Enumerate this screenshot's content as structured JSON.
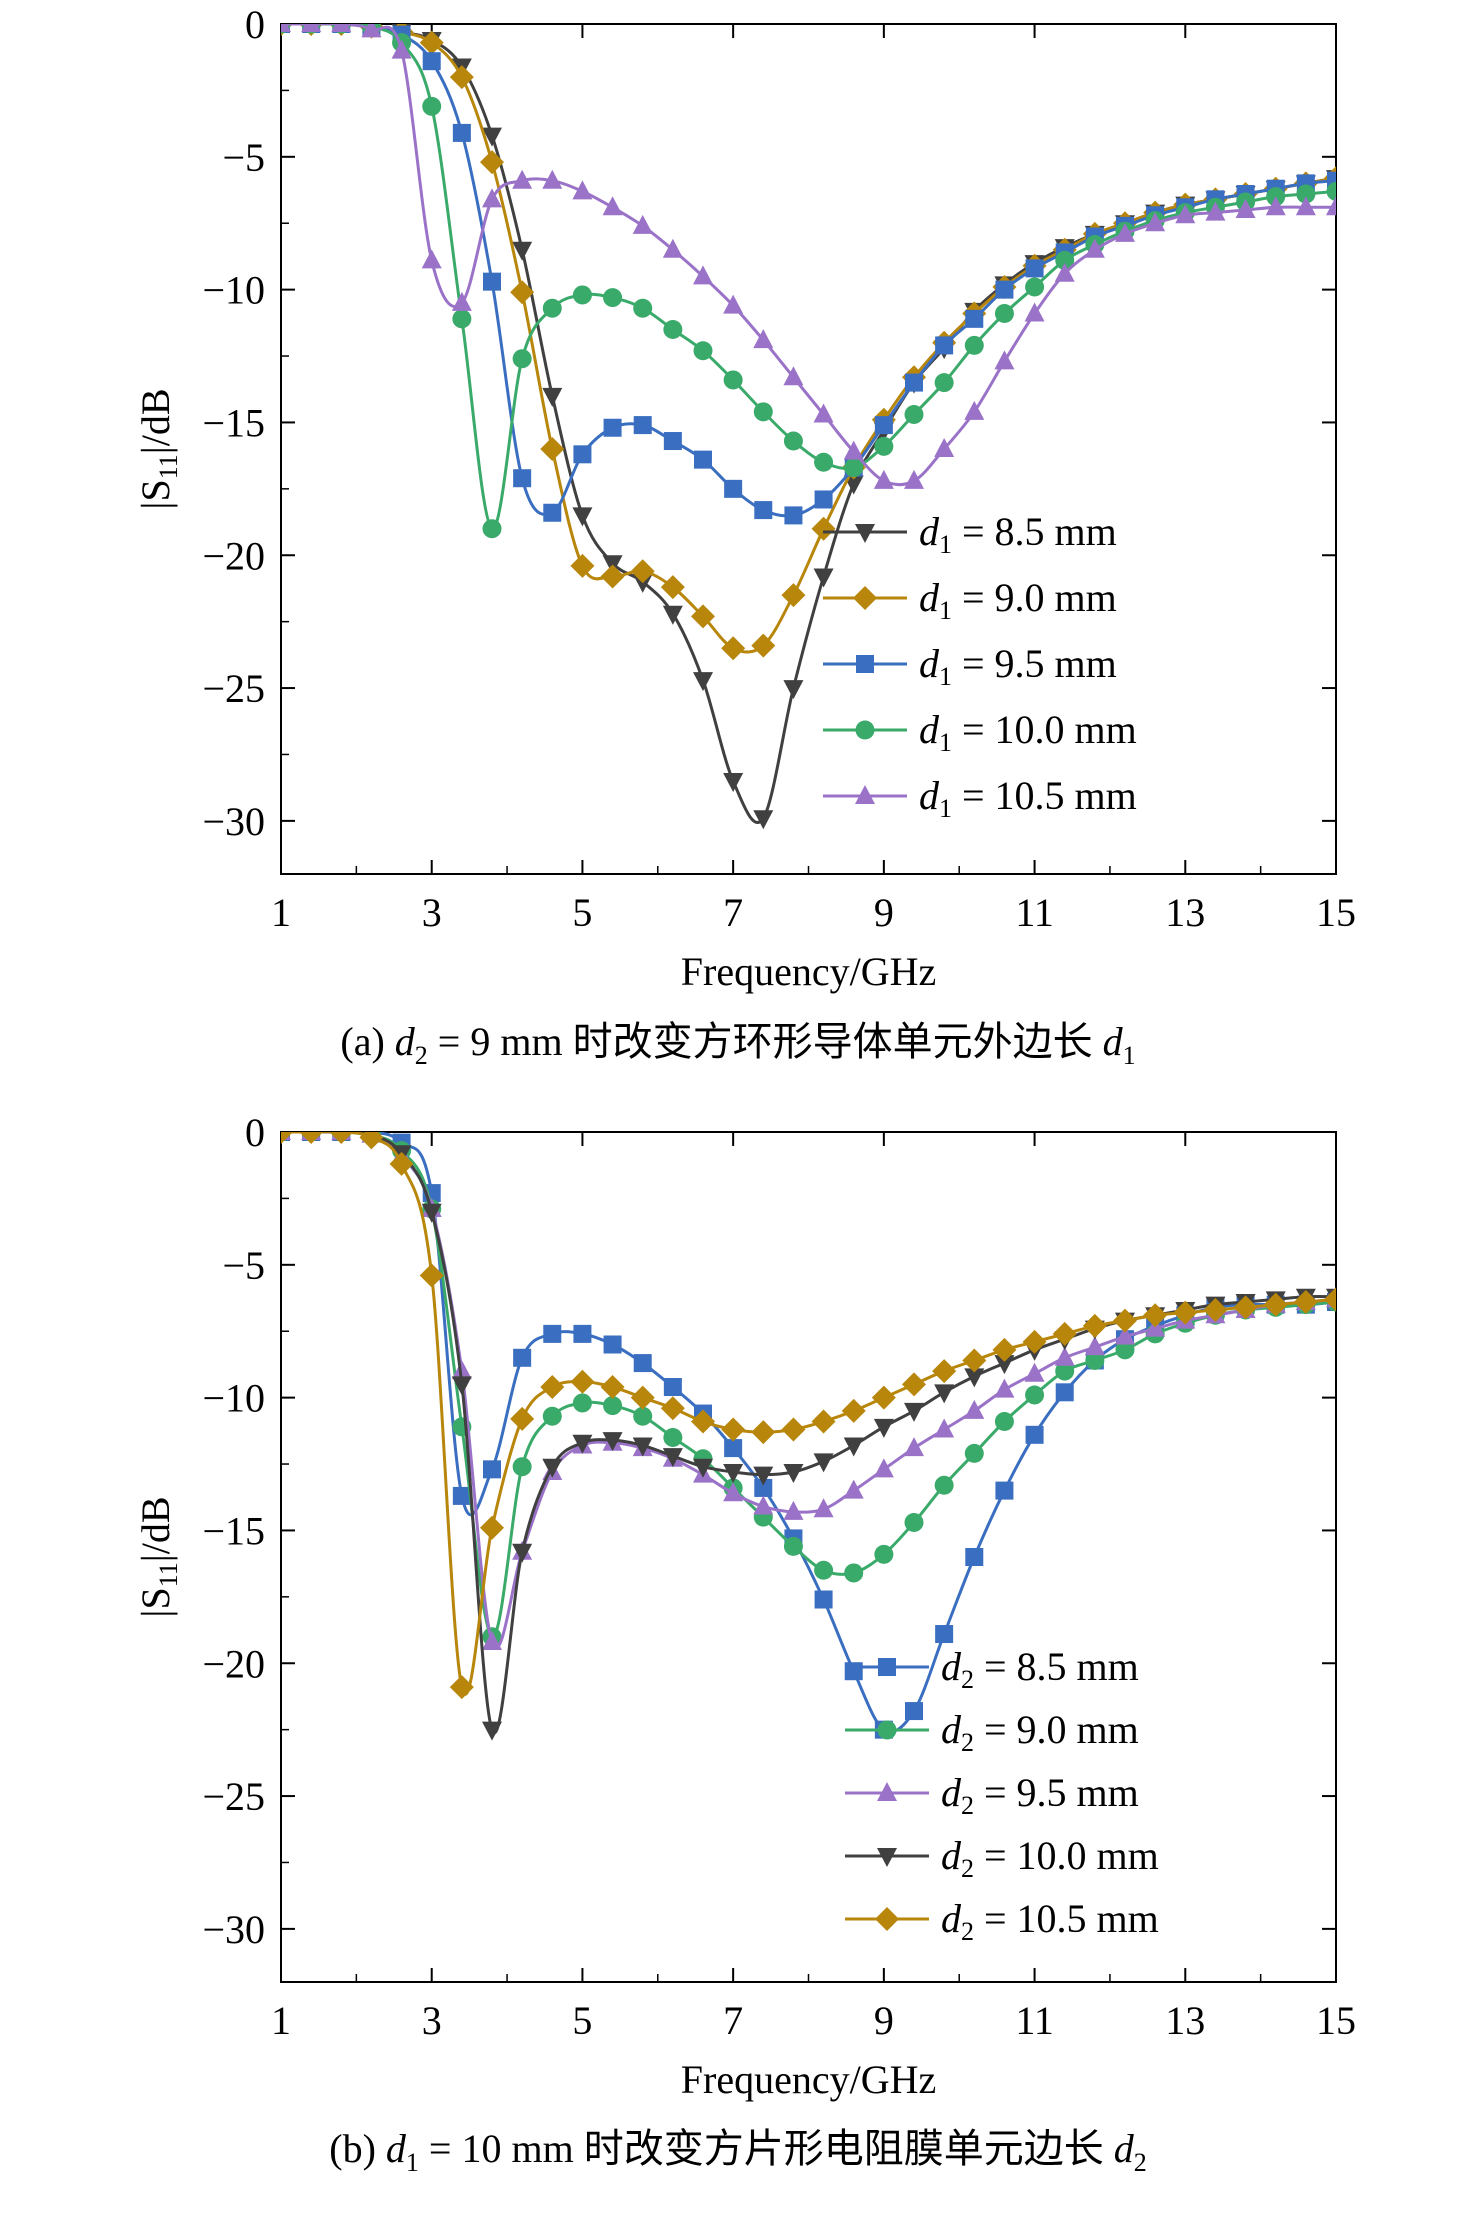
{
  "chart_data": [
    {
      "type": "line",
      "panel": "a",
      "xlabel": "Frequency/GHz",
      "ylabel": "|S11|/dB",
      "xlim": [
        1,
        15
      ],
      "ylim": [
        -32,
        0
      ],
      "xticks": [
        1,
        3,
        5,
        7,
        9,
        11,
        13,
        15
      ],
      "yticks": [
        0,
        -5,
        -10,
        -15,
        -20,
        -25,
        -30
      ],
      "grid": false,
      "legend_position": "bottom-right",
      "caption": {
        "prefix": "(a) ",
        "var1": "d",
        "sub1": "2",
        "mid": " = 9 mm 时改变方环形导体单元外边长 ",
        "var2": "d",
        "sub2": "1"
      },
      "series": [
        {
          "name": "d1 = 8.5 mm",
          "legend_var": "d",
          "legend_sub": "1",
          "legend_value": " = 8.5 mm",
          "color": "#404040",
          "marker": "triangle-down",
          "x": [
            1,
            1.4,
            1.8,
            2.2,
            2.6,
            3.0,
            3.4,
            3.8,
            4.2,
            4.6,
            5.0,
            5.4,
            5.8,
            6.2,
            6.6,
            7.0,
            7.4,
            7.8,
            8.2,
            8.6,
            9.0,
            9.4,
            9.8,
            10.2,
            10.6,
            11.0,
            11.4,
            11.8,
            12.2,
            12.6,
            13.0,
            13.4,
            13.8,
            14.2,
            14.6,
            15.0
          ],
          "y": [
            0,
            0,
            0,
            -0.1,
            -0.3,
            -0.6,
            -1.6,
            -4.2,
            -8.5,
            -14,
            -18.5,
            -20.3,
            -21.0,
            -22.2,
            -24.7,
            -28.5,
            -29.9,
            -25.0,
            -20.8,
            -17.3,
            -15.3,
            -13.5,
            -12.2,
            -10.8,
            -9.8,
            -9.0,
            -8.4,
            -7.9,
            -7.5,
            -7.1,
            -6.8,
            -6.6,
            -6.4,
            -6.2,
            -6.0,
            -5.8
          ]
        },
        {
          "name": "d1 = 9.0 mm",
          "legend_var": "d",
          "legend_sub": "1",
          "legend_value": " = 9.0 mm",
          "color": "#b8860b",
          "marker": "diamond",
          "x": [
            1,
            1.4,
            1.8,
            2.2,
            2.6,
            3.0,
            3.4,
            3.8,
            4.2,
            4.6,
            5.0,
            5.4,
            5.8,
            6.2,
            6.6,
            7.0,
            7.4,
            7.8,
            8.2,
            8.6,
            9.0,
            9.4,
            9.8,
            10.2,
            10.6,
            11.0,
            11.4,
            11.8,
            12.2,
            12.6,
            13.0,
            13.4,
            13.8,
            14.2,
            14.6,
            15.0
          ],
          "y": [
            0,
            0,
            0,
            -0.1,
            -0.3,
            -0.7,
            -2.0,
            -5.2,
            -10.1,
            -16.0,
            -20.4,
            -20.8,
            -20.6,
            -21.2,
            -22.3,
            -23.5,
            -23.4,
            -21.5,
            -19.0,
            -16.7,
            -14.9,
            -13.3,
            -12.0,
            -10.9,
            -9.9,
            -9.1,
            -8.5,
            -7.9,
            -7.5,
            -7.1,
            -6.8,
            -6.6,
            -6.4,
            -6.2,
            -6.0,
            -5.8
          ]
        },
        {
          "name": "d1 = 9.5 mm",
          "legend_var": "d",
          "legend_sub": "1",
          "legend_value": " = 9.5 mm",
          "color": "#3a6ec0",
          "marker": "square",
          "x": [
            1,
            1.4,
            1.8,
            2.2,
            2.6,
            3.0,
            3.4,
            3.8,
            4.2,
            4.6,
            5.0,
            5.4,
            5.8,
            6.2,
            6.6,
            7.0,
            7.4,
            7.8,
            8.2,
            8.6,
            9.0,
            9.4,
            9.8,
            10.2,
            10.6,
            11.0,
            11.4,
            11.8,
            12.2,
            12.6,
            13.0,
            13.4,
            13.8,
            14.2,
            14.6,
            15.0
          ],
          "y": [
            0,
            0,
            0,
            -0.1,
            -0.4,
            -1.4,
            -4.1,
            -9.7,
            -17.1,
            -18.4,
            -16.2,
            -15.2,
            -15.1,
            -15.7,
            -16.4,
            -17.5,
            -18.3,
            -18.5,
            -17.9,
            -16.7,
            -15.1,
            -13.5,
            -12.1,
            -11.1,
            -10.0,
            -9.2,
            -8.6,
            -8.0,
            -7.6,
            -7.2,
            -6.9,
            -6.6,
            -6.4,
            -6.2,
            -6.0,
            -5.9
          ]
        },
        {
          "name": "d1 = 10.0 mm",
          "legend_var": "d",
          "legend_sub": "1",
          "legend_value": " = 10.0 mm",
          "color": "#3aaa6a",
          "marker": "circle",
          "x": [
            1,
            1.4,
            1.8,
            2.2,
            2.6,
            3.0,
            3.4,
            3.8,
            4.2,
            4.6,
            5.0,
            5.4,
            5.8,
            6.2,
            6.6,
            7.0,
            7.4,
            7.8,
            8.2,
            8.6,
            9.0,
            9.4,
            9.8,
            10.2,
            10.6,
            11.0,
            11.4,
            11.8,
            12.2,
            12.6,
            13.0,
            13.4,
            13.8,
            14.2,
            14.6,
            15.0
          ],
          "y": [
            0,
            0,
            0,
            -0.1,
            -0.7,
            -3.1,
            -11.1,
            -19.0,
            -12.6,
            -10.7,
            -10.2,
            -10.3,
            -10.7,
            -11.5,
            -12.3,
            -13.4,
            -14.6,
            -15.7,
            -16.5,
            -16.7,
            -15.9,
            -14.7,
            -13.5,
            -12.1,
            -10.9,
            -9.9,
            -8.9,
            -8.3,
            -7.8,
            -7.4,
            -7.1,
            -6.9,
            -6.7,
            -6.5,
            -6.4,
            -6.3
          ]
        },
        {
          "name": "d1 = 10.5 mm",
          "legend_var": "d",
          "legend_sub": "1",
          "legend_value": " = 10.5 mm",
          "color": "#9a73c8",
          "marker": "triangle-up",
          "x": [
            1,
            1.4,
            1.8,
            2.2,
            2.6,
            3.0,
            3.4,
            3.8,
            4.2,
            4.6,
            5.0,
            5.4,
            5.8,
            6.2,
            6.6,
            7.0,
            7.4,
            7.8,
            8.2,
            8.6,
            9.0,
            9.4,
            9.8,
            10.2,
            10.6,
            11.0,
            11.4,
            11.8,
            12.2,
            12.6,
            13.0,
            13.4,
            13.8,
            14.2,
            14.6,
            15.0
          ],
          "y": [
            0,
            0,
            0,
            -0.2,
            -1.0,
            -8.9,
            -10.5,
            -6.6,
            -5.9,
            -5.9,
            -6.3,
            -6.9,
            -7.6,
            -8.5,
            -9.5,
            -10.6,
            -11.9,
            -13.3,
            -14.7,
            -16.1,
            -17.2,
            -17.2,
            -16.0,
            -14.6,
            -12.7,
            -10.9,
            -9.4,
            -8.5,
            -7.9,
            -7.5,
            -7.2,
            -7.1,
            -7.0,
            -6.9,
            -6.9,
            -6.9
          ]
        }
      ]
    },
    {
      "type": "line",
      "panel": "b",
      "xlabel": "Frequency/GHz",
      "ylabel": "|S11|/dB",
      "xlim": [
        1,
        15
      ],
      "ylim": [
        -32,
        0
      ],
      "xticks": [
        1,
        3,
        5,
        7,
        9,
        11,
        13,
        15
      ],
      "yticks": [
        0,
        -5,
        -10,
        -15,
        -20,
        -25,
        -30
      ],
      "grid": false,
      "legend_position": "bottom-right",
      "caption": {
        "prefix": "(b) ",
        "var1": "d",
        "sub1": "1",
        "mid": " = 10 mm 时改变方片形电阻膜单元边长 ",
        "var2": "d",
        "sub2": "2"
      },
      "series": [
        {
          "name": "d2 = 8.5 mm",
          "legend_var": "d",
          "legend_sub": "2",
          "legend_value": " = 8.5 mm",
          "color": "#3a6ec0",
          "marker": "square",
          "x": [
            1,
            1.4,
            1.8,
            2.2,
            2.6,
            3.0,
            3.4,
            3.8,
            4.2,
            4.6,
            5.0,
            5.4,
            5.8,
            6.2,
            6.6,
            7.0,
            7.4,
            7.8,
            8.2,
            8.6,
            9.0,
            9.4,
            9.8,
            10.2,
            10.6,
            11.0,
            11.4,
            11.8,
            12.2,
            12.6,
            13.0,
            13.4,
            13.8,
            14.2,
            14.6,
            15.0
          ],
          "y": [
            0,
            0,
            0,
            0,
            -0.4,
            -2.3,
            -13.7,
            -12.7,
            -8.5,
            -7.6,
            -7.6,
            -8.0,
            -8.7,
            -9.6,
            -10.6,
            -11.9,
            -13.4,
            -15.3,
            -17.6,
            -20.3,
            -22.5,
            -21.8,
            -18.9,
            -16.0,
            -13.5,
            -11.4,
            -9.8,
            -8.6,
            -7.8,
            -7.3,
            -6.9,
            -6.6,
            -6.5,
            -6.5,
            -6.5,
            -6.4
          ]
        },
        {
          "name": "d2 = 9.0 mm",
          "legend_var": "d",
          "legend_sub": "2",
          "legend_value": " = 9.0 mm",
          "color": "#3aaa6a",
          "marker": "circle",
          "x": [
            1,
            1.4,
            1.8,
            2.2,
            2.6,
            3.0,
            3.4,
            3.8,
            4.2,
            4.6,
            5.0,
            5.4,
            5.8,
            6.2,
            6.6,
            7.0,
            7.4,
            7.8,
            8.2,
            8.6,
            9.0,
            9.4,
            9.8,
            10.2,
            10.6,
            11.0,
            11.4,
            11.8,
            12.2,
            12.6,
            13.0,
            13.4,
            13.8,
            14.2,
            14.6,
            15.0
          ],
          "y": [
            0,
            0,
            0,
            -0.1,
            -0.7,
            -2.9,
            -11.1,
            -19.0,
            -12.6,
            -10.7,
            -10.2,
            -10.3,
            -10.7,
            -11.5,
            -12.3,
            -13.4,
            -14.5,
            -15.6,
            -16.5,
            -16.6,
            -15.9,
            -14.7,
            -13.3,
            -12.1,
            -10.9,
            -9.9,
            -9.0,
            -8.6,
            -8.2,
            -7.6,
            -7.2,
            -6.9,
            -6.7,
            -6.6,
            -6.5,
            -6.4
          ]
        },
        {
          "name": "d2 = 9.5 mm",
          "legend_var": "d",
          "legend_sub": "2",
          "legend_value": " = 9.5 mm",
          "color": "#9a73c8",
          "marker": "triangle-up",
          "x": [
            1,
            1.4,
            1.8,
            2.2,
            2.6,
            3.0,
            3.4,
            3.8,
            4.2,
            4.6,
            5.0,
            5.4,
            5.8,
            6.2,
            6.6,
            7.0,
            7.4,
            7.8,
            8.2,
            8.6,
            9.0,
            9.4,
            9.8,
            10.2,
            10.6,
            11.0,
            11.4,
            11.8,
            12.2,
            12.6,
            13.0,
            13.4,
            13.8,
            14.2,
            14.6,
            15.0
          ],
          "y": [
            0,
            0,
            0,
            -0.1,
            -0.9,
            -2.9,
            -9.0,
            -19.2,
            -15.8,
            -12.8,
            -11.8,
            -11.7,
            -11.9,
            -12.3,
            -12.9,
            -13.6,
            -14.1,
            -14.3,
            -14.2,
            -13.5,
            -12.7,
            -11.9,
            -11.2,
            -10.5,
            -9.7,
            -9.1,
            -8.5,
            -8.1,
            -7.7,
            -7.4,
            -7.1,
            -6.9,
            -6.7,
            -6.5,
            -6.4,
            -6.3
          ]
        },
        {
          "name": "d2 = 10.0 mm",
          "legend_var": "d",
          "legend_sub": "2",
          "legend_value": " = 10.0 mm",
          "color": "#404040",
          "marker": "triangle-down",
          "x": [
            1,
            1.4,
            1.8,
            2.2,
            2.6,
            3.0,
            3.4,
            3.8,
            4.2,
            4.6,
            5.0,
            5.4,
            5.8,
            6.2,
            6.6,
            7.0,
            7.4,
            7.8,
            8.2,
            8.6,
            9.0,
            9.4,
            9.8,
            10.2,
            10.6,
            11.0,
            11.4,
            11.8,
            12.2,
            12.6,
            13.0,
            13.4,
            13.8,
            14.2,
            14.6,
            15.0
          ],
          "y": [
            0,
            0,
            0,
            -0.1,
            -0.8,
            -3.0,
            -9.5,
            -22.5,
            -15.8,
            -12.6,
            -11.7,
            -11.6,
            -11.8,
            -12.2,
            -12.6,
            -12.8,
            -12.9,
            -12.8,
            -12.4,
            -11.8,
            -11.1,
            -10.5,
            -9.8,
            -9.2,
            -8.7,
            -8.2,
            -7.8,
            -7.4,
            -7.1,
            -6.9,
            -6.7,
            -6.5,
            -6.4,
            -6.3,
            -6.2,
            -6.2
          ]
        },
        {
          "name": "d2 = 10.5 mm",
          "legend_var": "d",
          "legend_sub": "2",
          "legend_value": " = 10.5 mm",
          "color": "#b8860b",
          "marker": "diamond",
          "x": [
            1,
            1.4,
            1.8,
            2.2,
            2.6,
            3.0,
            3.4,
            3.8,
            4.2,
            4.6,
            5.0,
            5.4,
            5.8,
            6.2,
            6.6,
            7.0,
            7.4,
            7.8,
            8.2,
            8.6,
            9.0,
            9.4,
            9.8,
            10.2,
            10.6,
            11.0,
            11.4,
            11.8,
            12.2,
            12.6,
            13.0,
            13.4,
            13.8,
            14.2,
            14.6,
            15.0
          ],
          "y": [
            0,
            0,
            0,
            -0.2,
            -1.2,
            -5.4,
            -20.9,
            -14.9,
            -10.8,
            -9.6,
            -9.4,
            -9.6,
            -10.0,
            -10.4,
            -10.9,
            -11.2,
            -11.3,
            -11.2,
            -10.9,
            -10.5,
            -10.0,
            -9.5,
            -9.0,
            -8.6,
            -8.2,
            -7.9,
            -7.6,
            -7.3,
            -7.1,
            -6.9,
            -6.8,
            -6.7,
            -6.6,
            -6.5,
            -6.4,
            -6.3
          ]
        }
      ]
    }
  ]
}
